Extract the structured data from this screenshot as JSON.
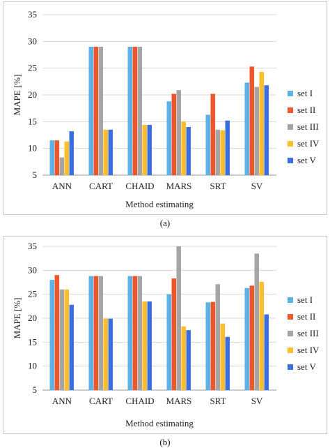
{
  "chart_data": [
    {
      "type": "bar",
      "caption": "(a)",
      "categories": [
        "ANN",
        "CART",
        "CHAID",
        "MARS",
        "SRT",
        "SV"
      ],
      "xlabel": "Method estimating",
      "ylabel": "MAPE [%]",
      "ylim": [
        5,
        35
      ],
      "yticks": [
        5,
        10,
        15,
        20,
        25,
        30,
        35
      ],
      "grid": true,
      "legend_position": "right",
      "series": [
        {
          "name": "set I",
          "color": "#5bb4e5",
          "values": [
            11.5,
            29.0,
            29.0,
            18.8,
            16.3,
            22.3
          ]
        },
        {
          "name": "set II",
          "color": "#f0562b",
          "values": [
            11.5,
            29.0,
            29.0,
            20.2,
            20.2,
            25.3
          ]
        },
        {
          "name": "set III",
          "color": "#a5a5a5",
          "values": [
            8.3,
            29.0,
            29.0,
            20.9,
            13.5,
            21.5
          ]
        },
        {
          "name": "set IV",
          "color": "#fdbe2c",
          "values": [
            11.3,
            13.5,
            14.4,
            15.0,
            13.4,
            24.3
          ]
        },
        {
          "name": "set V",
          "color": "#3b6fe0",
          "values": [
            13.2,
            13.5,
            14.4,
            14.0,
            15.2,
            21.8
          ]
        }
      ]
    },
    {
      "type": "bar",
      "caption": "(b)",
      "categories": [
        "ANN",
        "CART",
        "CHAID",
        "MARS",
        "SRT",
        "SV"
      ],
      "xlabel": "Method estimating",
      "ylabel": "MAPE [%]",
      "ylim": [
        5,
        35
      ],
      "yticks": [
        5,
        10,
        15,
        20,
        25,
        30,
        35
      ],
      "grid": true,
      "legend_position": "right",
      "series": [
        {
          "name": "set I",
          "color": "#5bb4e5",
          "values": [
            28.0,
            28.8,
            28.8,
            25.0,
            23.3,
            26.3
          ]
        },
        {
          "name": "set II",
          "color": "#f0562b",
          "values": [
            29.0,
            28.8,
            28.8,
            28.3,
            23.4,
            26.8
          ]
        },
        {
          "name": "set III",
          "color": "#a5a5a5",
          "values": [
            26.0,
            28.8,
            28.8,
            35.0,
            27.1,
            33.5
          ]
        },
        {
          "name": "set IV",
          "color": "#fdbe2c",
          "values": [
            26.0,
            19.9,
            23.5,
            18.3,
            18.9,
            27.6
          ]
        },
        {
          "name": "set V",
          "color": "#3b6fe0",
          "values": [
            22.8,
            19.9,
            23.5,
            17.5,
            16.1,
            20.8
          ]
        }
      ]
    }
  ]
}
